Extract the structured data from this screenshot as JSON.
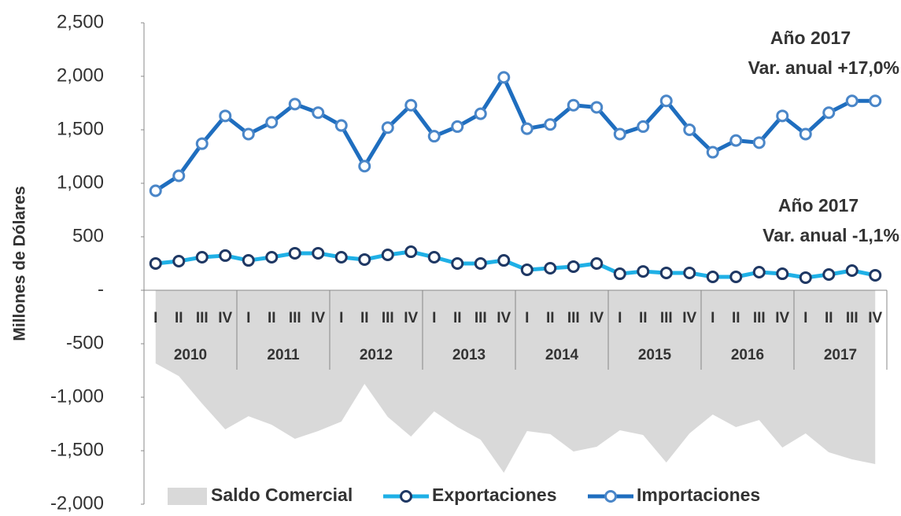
{
  "chart_data": {
    "type": "line",
    "y_label": "Millones de Dólares",
    "categories": [
      "I",
      "II",
      "III",
      "IV",
      "I",
      "II",
      "III",
      "IV",
      "I",
      "II",
      "III",
      "IV",
      "I",
      "II",
      "III",
      "IV",
      "I",
      "II",
      "III",
      "IV",
      "I",
      "II",
      "III",
      "IV",
      "I",
      "II",
      "III",
      "IV",
      "I",
      "II",
      "III",
      "IV"
    ],
    "year_labels": [
      "2010",
      "2011",
      "2012",
      "2013",
      "2014",
      "2015",
      "2016",
      "2017"
    ],
    "ylim": [
      -2000,
      2500
    ],
    "yticks": [
      {
        "value": -2000,
        "label": "-2,000"
      },
      {
        "value": -1500,
        "label": "-1,500"
      },
      {
        "value": -1000,
        "label": "-1,000"
      },
      -500,
      {
        "value": 0,
        "label": "-"
      },
      500,
      {
        "value": 1000,
        "label": "1,000"
      },
      {
        "value": 1500,
        "label": "1,500"
      },
      {
        "value": 2000,
        "label": "2,000"
      },
      {
        "value": 2500,
        "label": "2,500"
      }
    ],
    "series": [
      {
        "name": "Saldo Comercial",
        "kind": "area",
        "color": "#d9d9d9",
        "values": [
          -684,
          -802,
          -1059,
          -1301,
          -1177,
          -1257,
          -1389,
          -1316,
          -1228,
          -875,
          -1184,
          -1368,
          -1132,
          -1279,
          -1397,
          -1706,
          -1316,
          -1345,
          -1507,
          -1463,
          -1309,
          -1353,
          -1610,
          -1338,
          -1162,
          -1279,
          -1213,
          -1471,
          -1338,
          -1515,
          -1581,
          -1625
        ]
      },
      {
        "name": "Exportaciones",
        "kind": "line",
        "color": "#1fb0e6",
        "marker_color": "#1f3864",
        "values": [
          250,
          272,
          309,
          324,
          279,
          309,
          346,
          346,
          309,
          287,
          331,
          360,
          309,
          250,
          250,
          279,
          191,
          206,
          221,
          250,
          154,
          176,
          162,
          162,
          125,
          125,
          169,
          154,
          118,
          147,
          184,
          140
        ]
      },
      {
        "name": "Importaciones",
        "kind": "line",
        "color": "#1f6ebf",
        "marker_color": "#4a86c8",
        "values": [
          930,
          1070,
          1370,
          1630,
          1460,
          1570,
          1740,
          1660,
          1540,
          1160,
          1520,
          1730,
          1440,
          1530,
          1650,
          1990,
          1510,
          1550,
          1730,
          1710,
          1460,
          1530,
          1770,
          1500,
          1290,
          1400,
          1380,
          1630,
          1460,
          1660,
          1770,
          1770
        ]
      }
    ],
    "annotations": [
      "Año 2017",
      "Var. anual +17,0%",
      "Año 2017",
      "Var. anual -1,1%"
    ]
  }
}
